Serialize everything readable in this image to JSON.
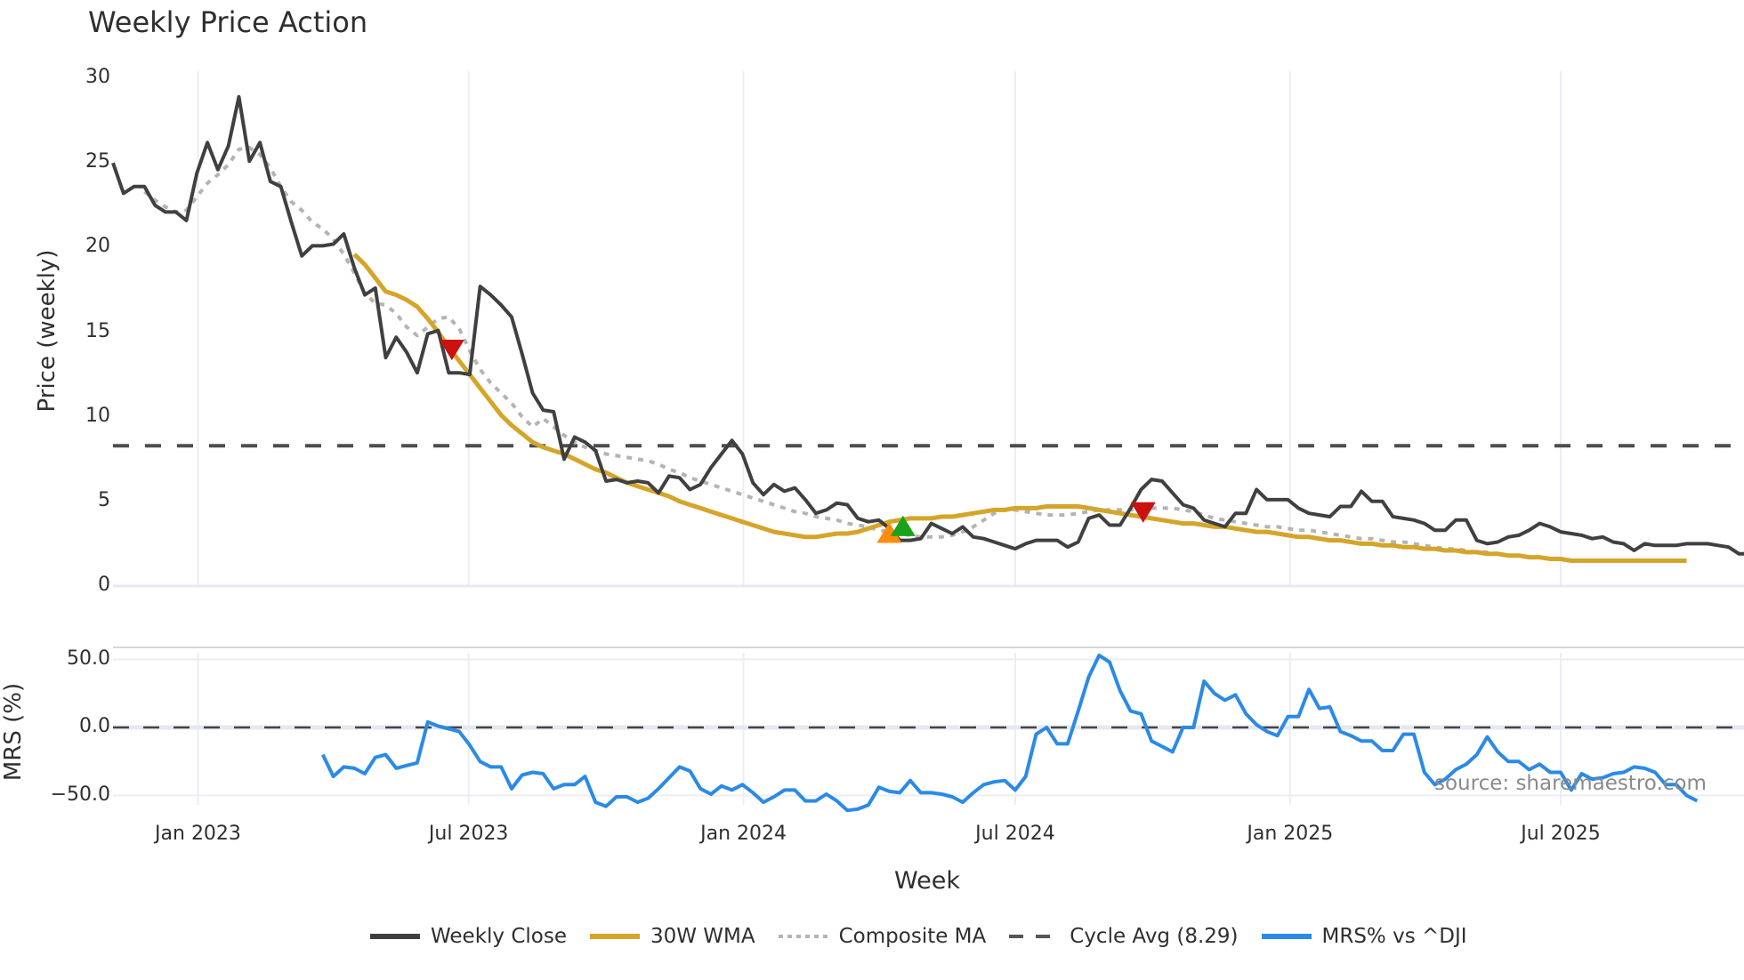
{
  "title": "Weekly Price Action",
  "source_label": "source: sharemaestro.com",
  "price_panel": {
    "ylabel": "Price (weekly)",
    "yticks": [
      {
        "label": "30",
        "value": 30
      },
      {
        "label": "25",
        "value": 25
      },
      {
        "label": "20",
        "value": 20
      },
      {
        "label": "15",
        "value": 15
      },
      {
        "label": "10",
        "value": 10
      },
      {
        "label": "5",
        "value": 5
      },
      {
        "label": "0",
        "value": 0
      }
    ]
  },
  "mrs_panel": {
    "ylabel": "MRS (%)",
    "yticks": [
      {
        "label": "50.0",
        "value": 50
      },
      {
        "label": "0.0",
        "value": 0
      },
      {
        "label": "−50.0",
        "value": -50
      }
    ]
  },
  "xaxis": {
    "title": "Week",
    "ticks": [
      {
        "label": "Jan 2023",
        "week": 8.1
      },
      {
        "label": "Jul 2023",
        "week": 33.9
      },
      {
        "label": "Jan 2024",
        "week": 60.1
      },
      {
        "label": "Jul 2024",
        "week": 86.0
      },
      {
        "label": "Jan 2025",
        "week": 112.2
      },
      {
        "label": "Jul 2025",
        "week": 138.0
      }
    ]
  },
  "legend": [
    {
      "label": "Weekly Close",
      "style": "solid",
      "color": "#404040"
    },
    {
      "label": "30W WMA",
      "style": "solid",
      "color": "#d4a52a"
    },
    {
      "label": "Composite MA",
      "style": "dotted",
      "color": "#b4b4b4"
    },
    {
      "label": "Cycle Avg (8.29)",
      "style": "dashed",
      "color": "#555555"
    },
    {
      "label": "MRS% vs ^DJI",
      "style": "solid",
      "color": "#2b8ae6"
    }
  ],
  "colors": {
    "weekly_close": "#404040",
    "wma": "#d4a52a",
    "composite": "#b4b4b4",
    "cycle_avg": "#4d4d4d",
    "mrs": "#2b8ae6",
    "grid": "#eceef4",
    "zero_line": "#e6e8f4",
    "signal_sell": "#cc1111",
    "signal_buy_orange": "#ff8c0a",
    "signal_buy_green": "#1aa31a"
  },
  "chart_data": {
    "type": "line",
    "title": "Weekly Price Action",
    "xlabel": "Week",
    "x_unit": "week index (0 = ~early Nov 2022)",
    "panels": [
      {
        "name": "price",
        "ylabel": "Price (weekly)",
        "ylim": [
          0,
          30
        ],
        "grid": true,
        "series": [
          {
            "name": "Weekly Close",
            "start_week": 0,
            "values": [
              25.0,
              23.2,
              23.6,
              23.6,
              22.5,
              22.1,
              22.1,
              21.6,
              24.4,
              26.2,
              24.6,
              26.0,
              28.9,
              25.1,
              26.2,
              23.9,
              23.6,
              21.5,
              19.5,
              20.1,
              20.1,
              20.2,
              20.8,
              18.8,
              17.2,
              17.6,
              13.5,
              14.7,
              13.8,
              12.6,
              14.9,
              15.1,
              12.6,
              12.6,
              12.5,
              17.7,
              17.2,
              16.6,
              15.9,
              13.7,
              11.4,
              10.4,
              10.3,
              7.5,
              8.8,
              8.5,
              8.0,
              6.2,
              6.3,
              6.1,
              6.2,
              6.1,
              5.5,
              6.5,
              6.4,
              5.7,
              6.0,
              7.0,
              7.8,
              8.6,
              7.8,
              6.1,
              5.4,
              6.0,
              5.6,
              5.8,
              5.1,
              4.3,
              4.5,
              4.9,
              4.8,
              4.0,
              3.8,
              3.9,
              3.4,
              2.7,
              2.7,
              2.8,
              3.7,
              3.4,
              3.1,
              3.5,
              2.9,
              2.8,
              2.6,
              2.4,
              2.2,
              2.5,
              2.7,
              2.7,
              2.7,
              2.3,
              2.6,
              4.0,
              4.2,
              3.6,
              3.6,
              4.6,
              5.7,
              6.3,
              6.2,
              5.5,
              4.8,
              4.6,
              3.9,
              3.7,
              3.5,
              4.3,
              4.3,
              5.7,
              5.1,
              5.1,
              5.1,
              4.6,
              4.3,
              4.2,
              4.1,
              4.7,
              4.7,
              5.6,
              5.0,
              5.0,
              4.1,
              4.0,
              3.9,
              3.7,
              3.3,
              3.3,
              3.9,
              3.9,
              2.7,
              2.5,
              2.6,
              2.9,
              3.0,
              3.3,
              3.7,
              3.5,
              3.2,
              3.1,
              3.0,
              2.8,
              2.9,
              2.6,
              2.5,
              2.1,
              2.5,
              2.4,
              2.4,
              2.4,
              2.5,
              2.5,
              2.5,
              2.4,
              2.3,
              1.9,
              1.9,
              1.6,
              1.5
            ]
          },
          {
            "name": "30W WMA",
            "start_week": 23,
            "values": [
              19.6,
              19.0,
              18.2,
              17.4,
              17.2,
              16.9,
              16.5,
              15.8,
              15.0,
              14.1,
              13.3,
              12.5,
              11.7,
              10.9,
              10.1,
              9.5,
              9.0,
              8.5,
              8.2,
              8.0,
              7.8,
              7.5,
              7.2,
              6.9,
              6.7,
              6.4,
              6.1,
              5.9,
              5.7,
              5.5,
              5.3,
              5.0,
              4.8,
              4.6,
              4.4,
              4.2,
              4.0,
              3.8,
              3.6,
              3.4,
              3.2,
              3.1,
              3.0,
              2.9,
              2.9,
              3.0,
              3.1,
              3.1,
              3.2,
              3.4,
              3.6,
              3.8,
              3.9,
              4.0,
              4.0,
              4.0,
              4.1,
              4.1,
              4.2,
              4.3,
              4.4,
              4.5,
              4.5,
              4.6,
              4.6,
              4.6,
              4.7,
              4.7,
              4.7,
              4.7,
              4.6,
              4.5,
              4.4,
              4.3,
              4.2,
              4.1,
              4.0,
              3.9,
              3.8,
              3.7,
              3.7,
              3.6,
              3.5,
              3.5,
              3.4,
              3.3,
              3.2,
              3.2,
              3.1,
              3.0,
              2.9,
              2.9,
              2.8,
              2.7,
              2.7,
              2.6,
              2.5,
              2.5,
              2.4,
              2.4,
              2.3,
              2.3,
              2.2,
              2.2,
              2.1,
              2.1,
              2.0,
              2.0,
              1.9,
              1.9,
              1.8,
              1.8,
              1.7,
              1.7,
              1.6,
              1.6,
              1.5,
              1.5,
              1.5,
              1.5,
              1.5,
              1.5,
              1.5,
              1.5,
              1.5,
              1.5,
              1.5,
              1.5
            ]
          },
          {
            "name": "Composite MA",
            "start_week": 3,
            "values": [
              23.3,
              22.8,
              22.4,
              22.1,
              22.2,
              23.0,
              23.8,
              24.3,
              24.9,
              25.8,
              25.9,
              25.5,
              24.7,
              23.6,
              22.7,
              22.2,
              21.5,
              21.1,
              20.5,
              19.6,
              18.5,
              17.3,
              16.7,
              16.6,
              16.1,
              15.3,
              14.8,
              15.3,
              15.8,
              15.9,
              15.2,
              13.9,
              12.8,
              12.0,
              11.4,
              10.8,
              10.0,
              9.4,
              9.9,
              9.4,
              8.9,
              8.5,
              8.2,
              8.0,
              7.8,
              7.7,
              7.6,
              7.5,
              7.4,
              7.2,
              6.9,
              6.7,
              6.4,
              6.2,
              6.0,
              5.8,
              5.6,
              5.4,
              5.2,
              5.0,
              4.8,
              4.6,
              4.4,
              4.3,
              4.1,
              4.0,
              3.9,
              3.7,
              3.6,
              3.5,
              3.3,
              3.2,
              3.1,
              3.0,
              2.9,
              2.9,
              2.9,
              3.0,
              3.2,
              3.5,
              3.9,
              4.3,
              4.5,
              4.5,
              4.4,
              4.3,
              4.2,
              4.2,
              4.2,
              4.3,
              4.4,
              4.5,
              4.5,
              4.5,
              4.5,
              4.6,
              4.6,
              4.6,
              4.6,
              4.5,
              4.4,
              4.2,
              4.0,
              3.9,
              3.8,
              3.7,
              3.6,
              3.5,
              3.5,
              3.4,
              3.3,
              3.3,
              3.2,
              3.1,
              3.0,
              2.9,
              2.8,
              2.8,
              2.7,
              2.6,
              2.6,
              2.5,
              2.4,
              2.3,
              2.2,
              2.2,
              2.1,
              2.0,
              2.0,
              1.9,
              1.8
            ]
          },
          {
            "name": "Cycle Avg (8.29)",
            "constant": 8.29
          }
        ],
        "markers": [
          {
            "type": "sell",
            "shape": "triangle-down",
            "color": "#cc1111",
            "week": 32.3,
            "value": 14.0
          },
          {
            "type": "buy",
            "shape": "triangle-up",
            "color": "#ff8c0a",
            "week": 74.0,
            "value": 3.1
          },
          {
            "type": "buy",
            "shape": "triangle-up",
            "color": "#1aa31a",
            "week": 75.3,
            "value": 3.5
          },
          {
            "type": "sell",
            "shape": "triangle-down",
            "color": "#cc1111",
            "week": 98.2,
            "value": 4.4
          }
        ]
      },
      {
        "name": "mrs",
        "ylabel": "MRS (%)",
        "ylim": [
          -60,
          60
        ],
        "grid": true,
        "series": [
          {
            "name": "MRS% vs ^DJI",
            "start_week": 20,
            "values": [
              -20,
              -36,
              -29,
              -30,
              -34,
              -22,
              -20,
              -30,
              -28,
              -26,
              4,
              1,
              -1,
              -3,
              -13,
              -25,
              -29,
              -29,
              -45,
              -35,
              -33,
              -34,
              -45,
              -42,
              -42,
              -36,
              -55,
              -58,
              -51,
              -51,
              -55,
              -52,
              -45,
              -37,
              -29,
              -32,
              -45,
              -49,
              -43,
              -46,
              -42,
              -48,
              -55,
              -51,
              -46,
              -46,
              -54,
              -54,
              -49,
              -54,
              -61,
              -60,
              -57,
              -44,
              -47,
              -48,
              -39,
              -48,
              -48,
              -49,
              -51,
              -55,
              -48,
              -42,
              -40,
              -39,
              -46,
              -36,
              -5,
              0,
              -12,
              -12,
              12,
              37,
              53,
              48,
              27,
              12,
              10,
              -10,
              -14,
              -18,
              0,
              0,
              34,
              25,
              20,
              24,
              10,
              2,
              -3,
              -6,
              8,
              8,
              28,
              14,
              15,
              -3,
              -6,
              -10,
              -10,
              -17,
              -17,
              -5,
              -5,
              -33,
              -42,
              -38,
              -31,
              -27,
              -20,
              -7,
              -18,
              -25,
              -25,
              -31,
              -27,
              -33,
              -33,
              -46,
              -34,
              -38,
              -37,
              -34,
              -33,
              -29,
              -30,
              -33,
              -42,
              -42,
              -50,
              -54
            ]
          }
        ],
        "reference_lines": [
          {
            "value": 0,
            "style": "dashed"
          }
        ]
      }
    ]
  }
}
